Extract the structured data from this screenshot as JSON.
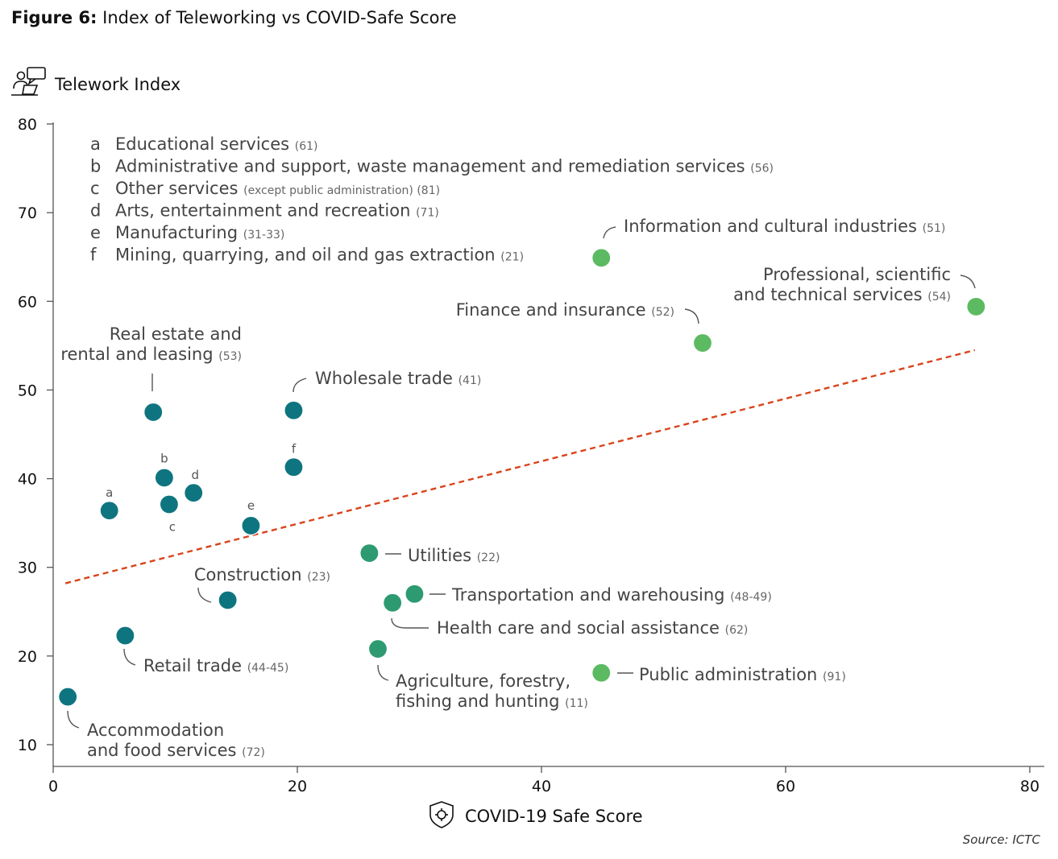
{
  "figure": {
    "label": "Figure 6:",
    "title": "Index of Teleworking vs COVID-Safe Score",
    "source": "Source: ICTC"
  },
  "colors": {
    "dark_teal": "#0e7580",
    "mid_green": "#2e9a72",
    "light_green": "#5cba62",
    "trend": "#d9441c",
    "axis": "#555555"
  },
  "chart_data": {
    "type": "scatter",
    "title": "Index of Teleworking vs COVID-Safe Score",
    "xlabel": "COVID-19 Safe Score",
    "ylabel": "Telework Index",
    "xlim": [
      0,
      80
    ],
    "ylim": [
      8,
      80
    ],
    "xticks": [
      0,
      20,
      40,
      60,
      80
    ],
    "yticks": [
      10,
      20,
      30,
      40,
      50,
      60,
      70,
      80
    ],
    "trendline": {
      "x": [
        1,
        75.5
      ],
      "y": [
        28.2,
        54.5
      ]
    },
    "legend_list": [
      {
        "letter": "a",
        "name": "Educational services",
        "code": "(61)"
      },
      {
        "letter": "b",
        "name": "Administrative and support, waste management and remediation services",
        "code": "(56)"
      },
      {
        "letter": "c",
        "name": "Other services",
        "code": "(except public administration) (81)"
      },
      {
        "letter": "d",
        "name": "Arts, entertainment and recreation",
        "code": "(71)"
      },
      {
        "letter": "e",
        "name": "Manufacturing",
        "code": "(31-33)"
      },
      {
        "letter": "f",
        "name": "Mining, quarrying, and oil and gas extraction",
        "code": "(21)"
      }
    ],
    "points": [
      {
        "id": "accommodation",
        "x": 1.2,
        "y": 15.4,
        "color": "dark",
        "lines": [
          "Accommodation",
          "and food services"
        ],
        "code": "(72)"
      },
      {
        "id": "retail",
        "x": 5.9,
        "y": 22.3,
        "color": "dark",
        "lines": [
          "Retail trade"
        ],
        "code": "(44-45)"
      },
      {
        "id": "educational",
        "x": 4.6,
        "y": 36.4,
        "color": "dark",
        "letter": "a"
      },
      {
        "id": "real-estate",
        "x": 8.2,
        "y": 47.5,
        "color": "dark",
        "lines": [
          "Real estate and",
          "rental and leasing"
        ],
        "code": "(53)"
      },
      {
        "id": "administrative",
        "x": 9.1,
        "y": 40.1,
        "color": "dark",
        "letter": "b"
      },
      {
        "id": "other-services",
        "x": 9.5,
        "y": 37.1,
        "color": "dark",
        "letter": "c"
      },
      {
        "id": "arts",
        "x": 11.5,
        "y": 38.4,
        "color": "dark",
        "letter": "d"
      },
      {
        "id": "construction",
        "x": 14.3,
        "y": 26.3,
        "color": "dark",
        "lines": [
          "Construction"
        ],
        "code": "(23)"
      },
      {
        "id": "manufacturing",
        "x": 16.2,
        "y": 34.7,
        "color": "dark",
        "letter": "e"
      },
      {
        "id": "wholesale",
        "x": 19.7,
        "y": 47.7,
        "color": "dark",
        "lines": [
          "Wholesale trade"
        ],
        "code": "(41)"
      },
      {
        "id": "mining",
        "x": 19.7,
        "y": 41.3,
        "color": "dark",
        "letter": "f"
      },
      {
        "id": "utilities",
        "x": 25.9,
        "y": 31.6,
        "color": "mid",
        "lines": [
          "Utilities"
        ],
        "code": "(22)"
      },
      {
        "id": "agriculture",
        "x": 26.6,
        "y": 20.8,
        "color": "mid",
        "lines": [
          "Agriculture, forestry,",
          "fishing and hunting"
        ],
        "code": "(11)"
      },
      {
        "id": "health-care",
        "x": 27.8,
        "y": 26.0,
        "color": "mid",
        "lines": [
          "Health care and social assistance"
        ],
        "code": "(62)"
      },
      {
        "id": "transportation",
        "x": 29.6,
        "y": 27.0,
        "color": "mid",
        "lines": [
          "Transportation and warehousing"
        ],
        "code": "(48-49)"
      },
      {
        "id": "public-administration",
        "x": 44.9,
        "y": 18.1,
        "color": "light",
        "lines": [
          "Public administration"
        ],
        "code": "(91)"
      },
      {
        "id": "information",
        "x": 44.9,
        "y": 64.9,
        "color": "light",
        "lines": [
          "Information and cultural industries"
        ],
        "code": "(51)"
      },
      {
        "id": "finance",
        "x": 53.2,
        "y": 55.3,
        "color": "light",
        "lines": [
          "Finance and insurance"
        ],
        "code": "(52)"
      },
      {
        "id": "professional",
        "x": 75.6,
        "y": 59.4,
        "color": "light",
        "lines": [
          "Professional, scientific",
          "and technical services"
        ],
        "code": "(54)"
      }
    ]
  }
}
